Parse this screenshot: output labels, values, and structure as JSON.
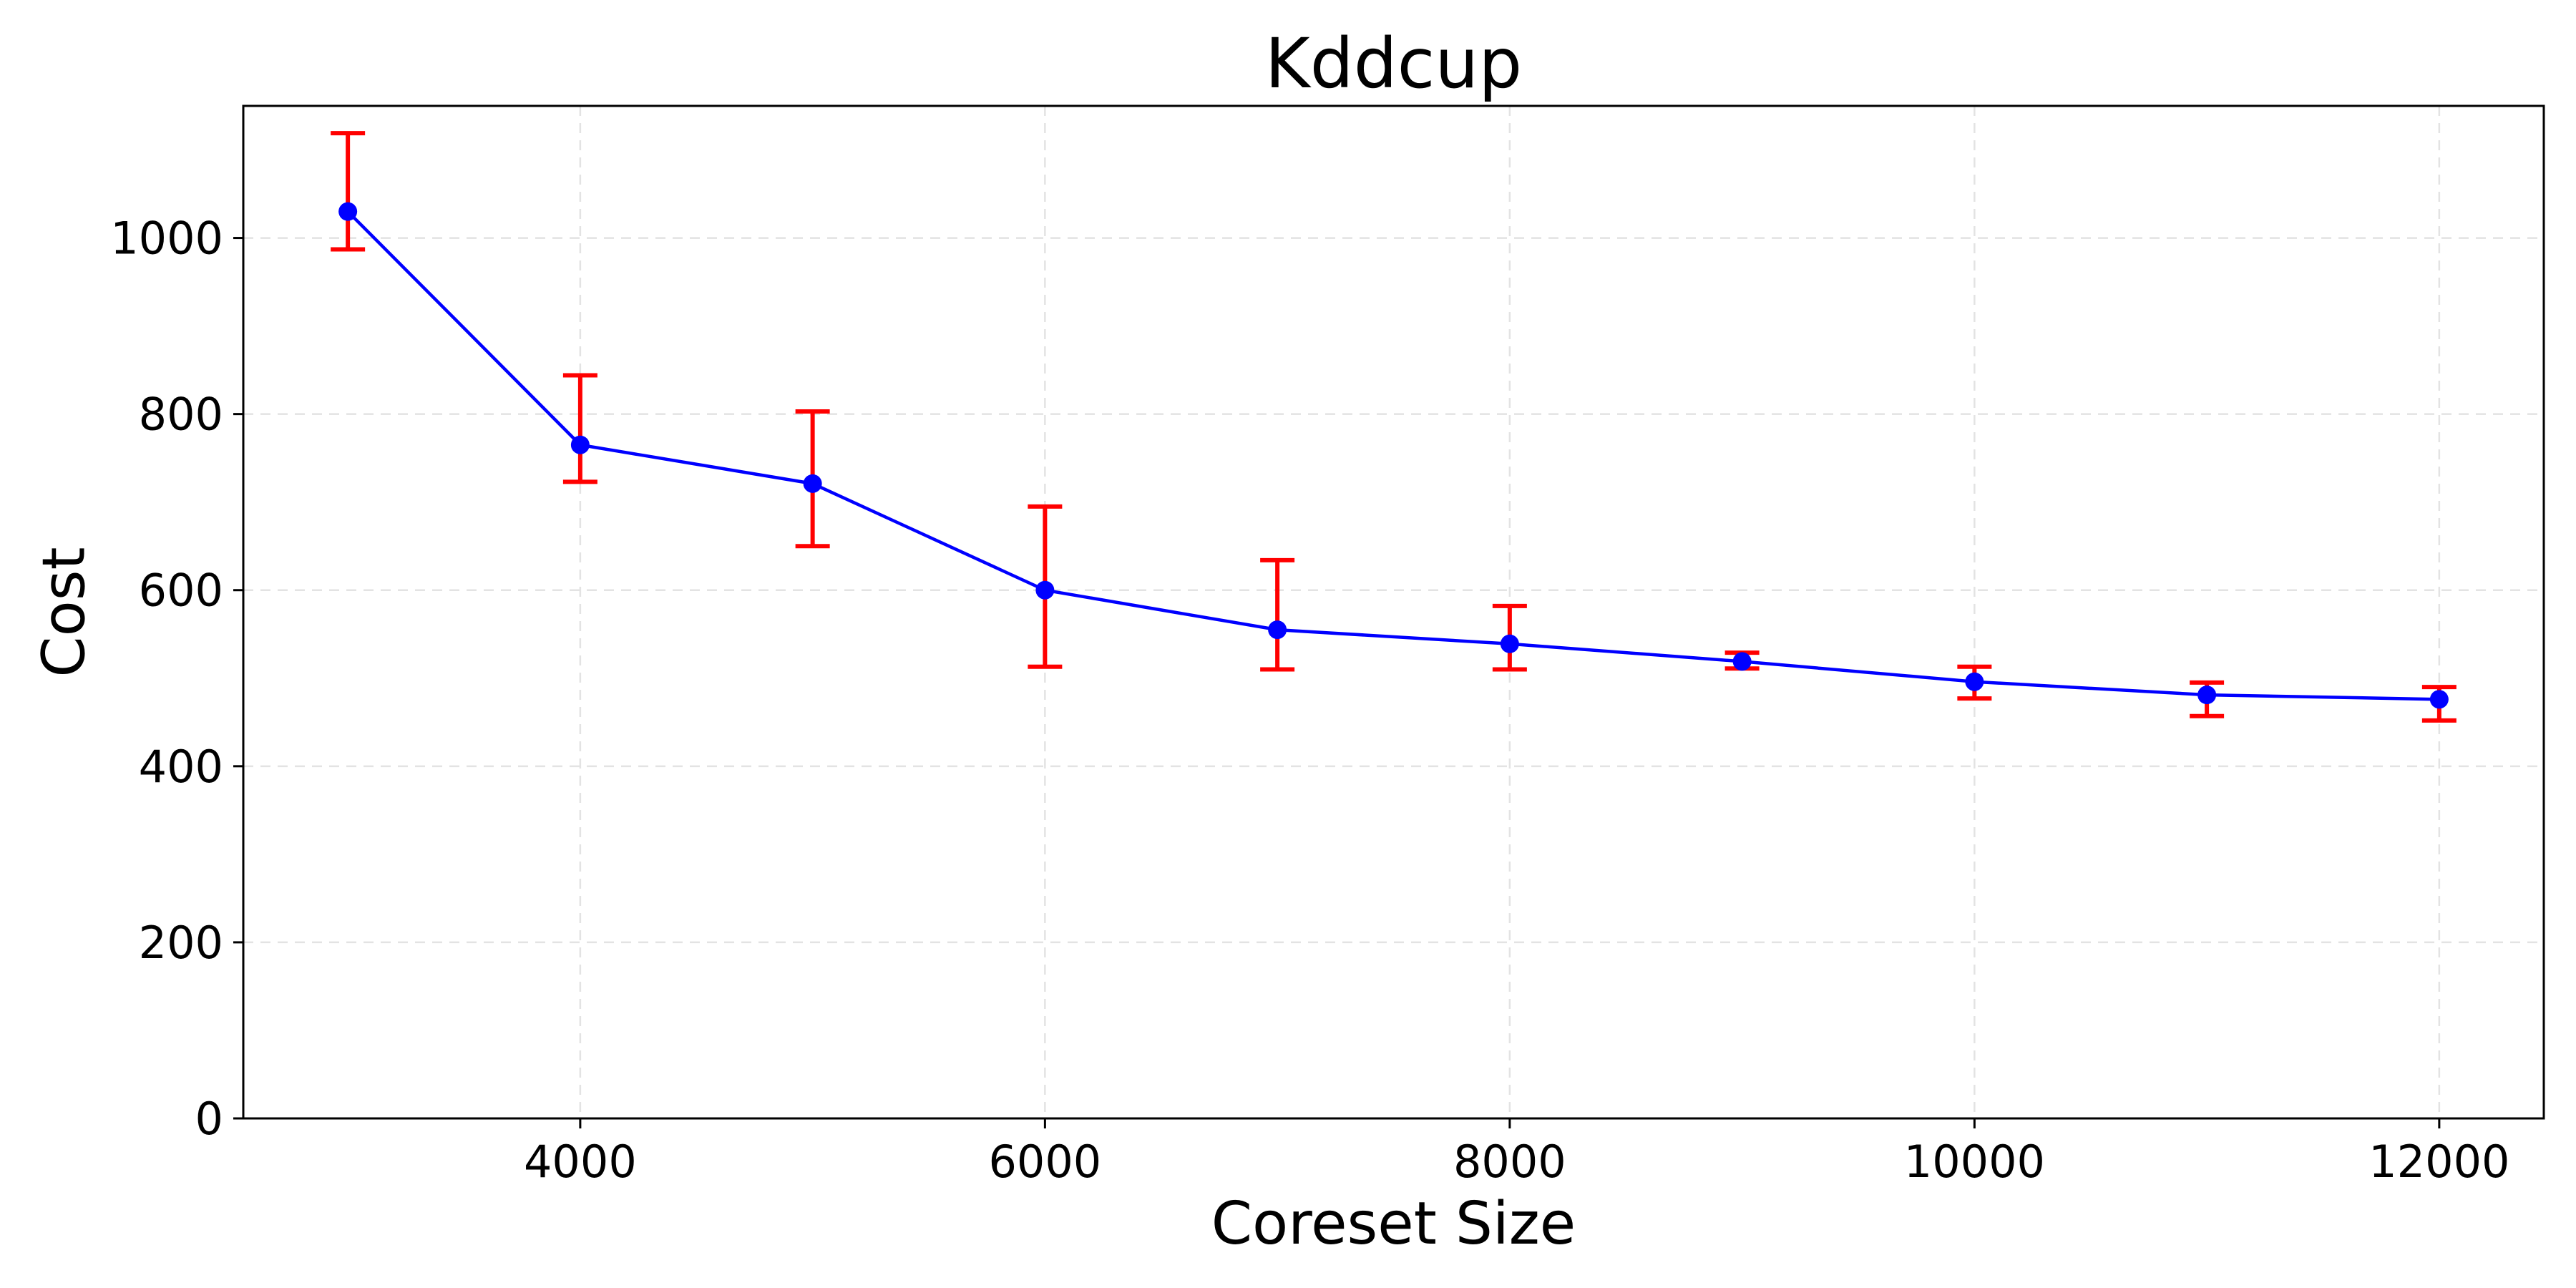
{
  "chart_data": {
    "type": "line",
    "title": "Kddcup",
    "xlabel": "Coreset Size",
    "ylabel": "Cost",
    "xlim": [
      2550,
      12450
    ],
    "ylim": [
      0,
      1150
    ],
    "x_ticks": [
      4000,
      6000,
      8000,
      10000,
      12000
    ],
    "y_ticks": [
      0,
      200,
      400,
      600,
      800,
      1000
    ],
    "grid": true,
    "series": [
      {
        "line_color": "#0000ff",
        "error_color": "#ff0000",
        "x": [
          3000,
          4000,
          5000,
          6000,
          7000,
          8000,
          9000,
          10000,
          11000,
          12000
        ],
        "y": [
          1030,
          765,
          721,
          600,
          555,
          539,
          519,
          496,
          481,
          476
        ],
        "error_low": [
          987,
          723,
          650,
          513,
          510,
          510,
          511,
          477,
          457,
          452
        ],
        "error_high": [
          1119,
          844,
          803,
          695,
          634,
          582,
          529,
          513,
          495,
          490
        ]
      }
    ]
  }
}
